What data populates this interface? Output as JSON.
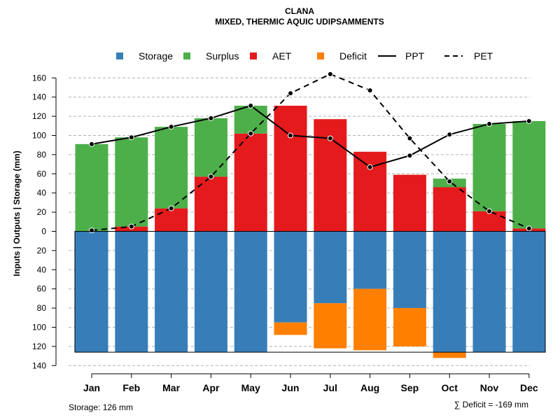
{
  "chart_data": {
    "type": "bar",
    "title": "CLANA",
    "subtitle": "MIXED, THERMIC AQUIC UDIPSAMMENTS",
    "ylabel": "Inputs | Outputs | Storage    (mm)",
    "categories": [
      "Jan",
      "Feb",
      "Mar",
      "Apr",
      "May",
      "Jun",
      "Jul",
      "Aug",
      "Sep",
      "Oct",
      "Nov",
      "Dec"
    ],
    "y_ticks_up": [
      0,
      20,
      40,
      60,
      80,
      100,
      120,
      140,
      160
    ],
    "y_ticks_down": [
      20,
      40,
      60,
      80,
      100,
      120,
      140
    ],
    "y_tick_labels_up": [
      "0",
      "20",
      "40",
      "60",
      "80",
      "100",
      "120",
      "140",
      "160"
    ],
    "y_tick_labels_down": [
      "20",
      "40",
      "60",
      "80",
      "100",
      "120",
      "140"
    ],
    "ylim": [
      -140,
      165
    ],
    "grid": true,
    "legend": {
      "position": "top",
      "items": [
        {
          "label": "Storage",
          "kind": "square",
          "color": "#377EB8"
        },
        {
          "label": "Surplus",
          "kind": "square",
          "color": "#4DAF4A"
        },
        {
          "label": "AET",
          "kind": "square",
          "color": "#E41A1C"
        },
        {
          "label": "Deficit",
          "kind": "square",
          "color": "#FF7F00"
        },
        {
          "label": "PPT",
          "kind": "solid-line",
          "color": "#000000"
        },
        {
          "label": "PET",
          "kind": "dashed-line",
          "color": "#000000"
        }
      ]
    },
    "series": [
      {
        "name": "AET",
        "color": "#E41A1C",
        "values": [
          0,
          5,
          24,
          57,
          102,
          131,
          117,
          83,
          59,
          46,
          21,
          3
        ]
      },
      {
        "name": "Surplus",
        "color": "#4DAF4A",
        "values": [
          91,
          93,
          85,
          61,
          29,
          0,
          0,
          0,
          0,
          9,
          91,
          112
        ]
      },
      {
        "name": "Storage",
        "color": "#377EB8",
        "values": [
          126,
          126,
          126,
          126,
          126,
          95,
          75,
          60,
          80,
          126,
          126,
          126
        ]
      },
      {
        "name": "Deficit",
        "color": "#FF7F00",
        "values": [
          0,
          0,
          0,
          0,
          0,
          13,
          47,
          64,
          40,
          6,
          0,
          0
        ]
      },
      {
        "name": "PPT",
        "color": "#000000",
        "values": [
          91,
          98,
          109,
          118,
          131,
          100,
          97,
          67,
          79,
          101,
          112,
          115
        ]
      },
      {
        "name": "PET",
        "color": "#000000",
        "values": [
          1,
          5,
          24,
          57,
          102,
          144,
          164,
          147,
          97,
          52,
          21,
          3
        ]
      }
    ],
    "storage_capacity": 126,
    "footer": {
      "storage_text": "Storage: 126 mm",
      "deficit_text": "∑ Deficit = -169 mm"
    }
  }
}
